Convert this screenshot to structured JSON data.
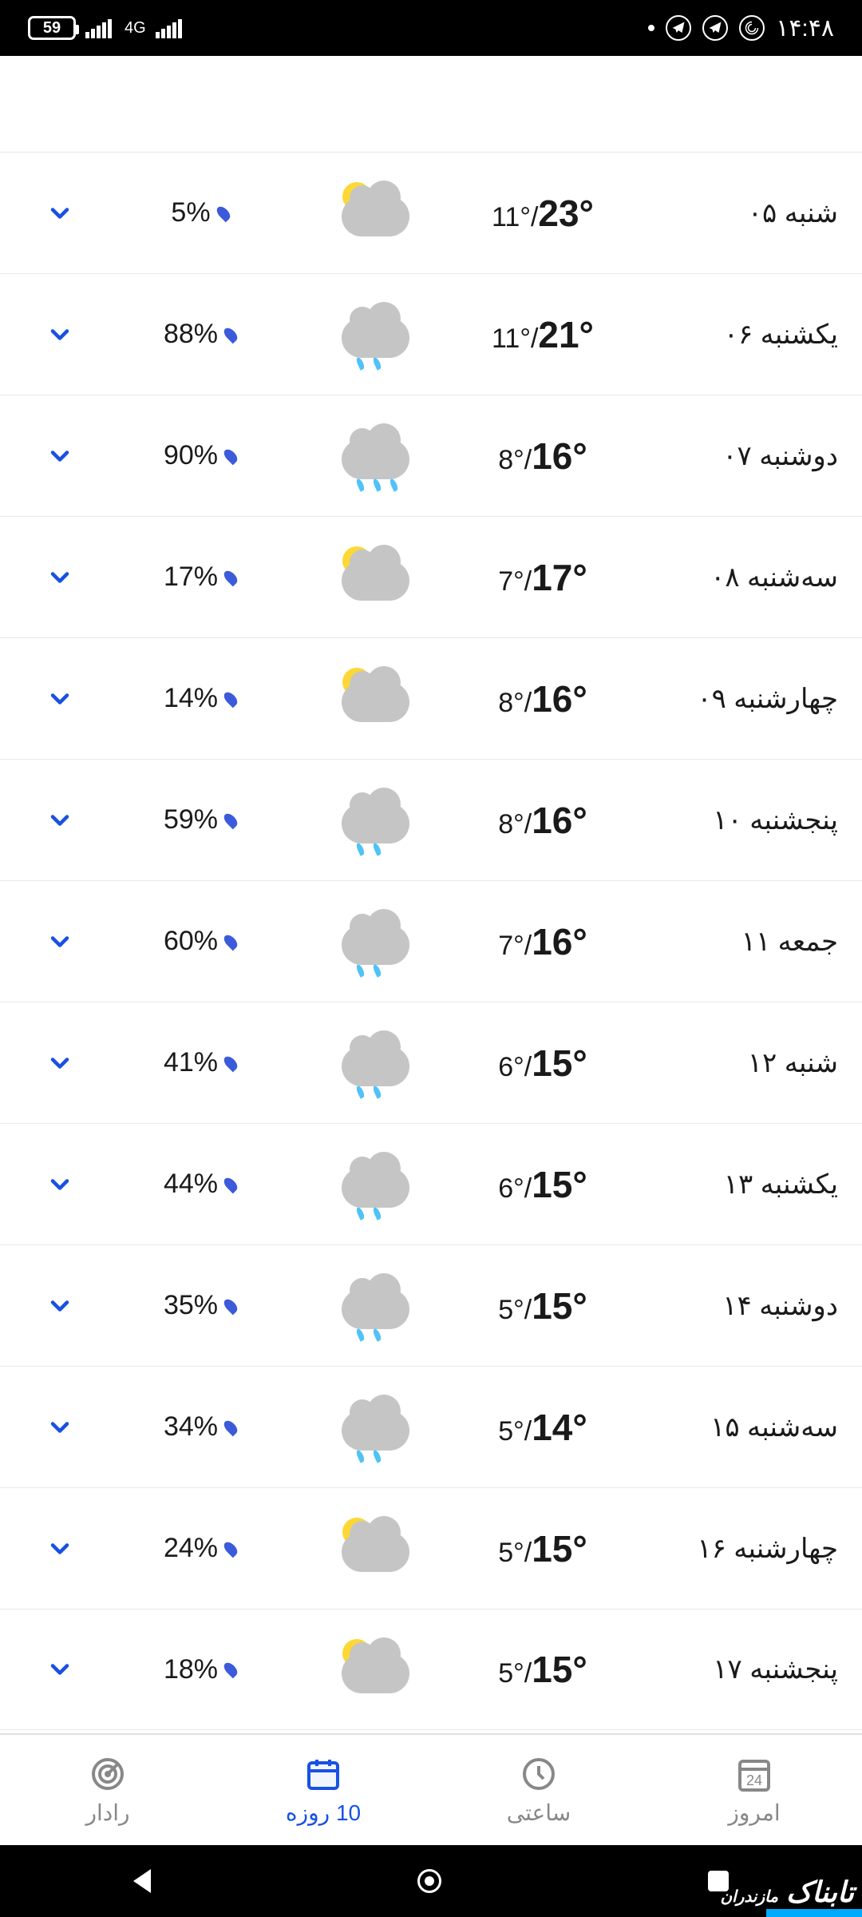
{
  "status": {
    "battery": "59",
    "network": "4G",
    "time": "۱۴:۴۸"
  },
  "forecast": [
    {
      "day": "شنبه ۰۵",
      "low": "11°",
      "high": "23°",
      "precip": "5%",
      "icon": "partly-cloudy"
    },
    {
      "day": "یکشنبه ۰۶",
      "low": "11°",
      "high": "21°",
      "precip": "88%",
      "icon": "rain"
    },
    {
      "day": "دوشنبه ۰۷",
      "low": "8°",
      "high": "16°",
      "precip": "90%",
      "icon": "rain-heavy"
    },
    {
      "day": "سه‌شنبه ۰۸",
      "low": "7°",
      "high": "17°",
      "precip": "17%",
      "icon": "partly-cloudy"
    },
    {
      "day": "چهارشنبه ۰۹",
      "low": "8°",
      "high": "16°",
      "precip": "14%",
      "icon": "partly-cloudy"
    },
    {
      "day": "پنجشنبه ۱۰",
      "low": "8°",
      "high": "16°",
      "precip": "59%",
      "icon": "rain"
    },
    {
      "day": "جمعه ۱۱",
      "low": "7°",
      "high": "16°",
      "precip": "60%",
      "icon": "rain"
    },
    {
      "day": "شنبه ۱۲",
      "low": "6°",
      "high": "15°",
      "precip": "41%",
      "icon": "rain"
    },
    {
      "day": "یکشنبه ۱۳",
      "low": "6°",
      "high": "15°",
      "precip": "44%",
      "icon": "rain"
    },
    {
      "day": "دوشنبه ۱۴",
      "low": "5°",
      "high": "15°",
      "precip": "35%",
      "icon": "rain"
    },
    {
      "day": "سه‌شنبه ۱۵",
      "low": "5°",
      "high": "14°",
      "precip": "34%",
      "icon": "rain"
    },
    {
      "day": "چهارشنبه ۱۶",
      "low": "5°",
      "high": "15°",
      "precip": "24%",
      "icon": "partly-cloudy"
    },
    {
      "day": "پنجشنبه ۱۷",
      "low": "5°",
      "high": "15°",
      "precip": "18%",
      "icon": "partly-cloudy"
    }
  ],
  "tabs": {
    "today": "امروز",
    "hourly": "ساعتی",
    "tenday": "10 روزه",
    "radar": "رادار",
    "today_badge": "24",
    "active_index": 2
  },
  "watermark": {
    "main": "تابناک",
    "sub": "مازندران"
  },
  "colors": {
    "accent": "#1851e3",
    "divider": "#e8e8e8",
    "text": "#1a1a1a",
    "cloud": "#c5c5c5",
    "sun": "#fdd835",
    "rain": "#4fc3f7",
    "raindrop_small": "#3b5bdb"
  }
}
